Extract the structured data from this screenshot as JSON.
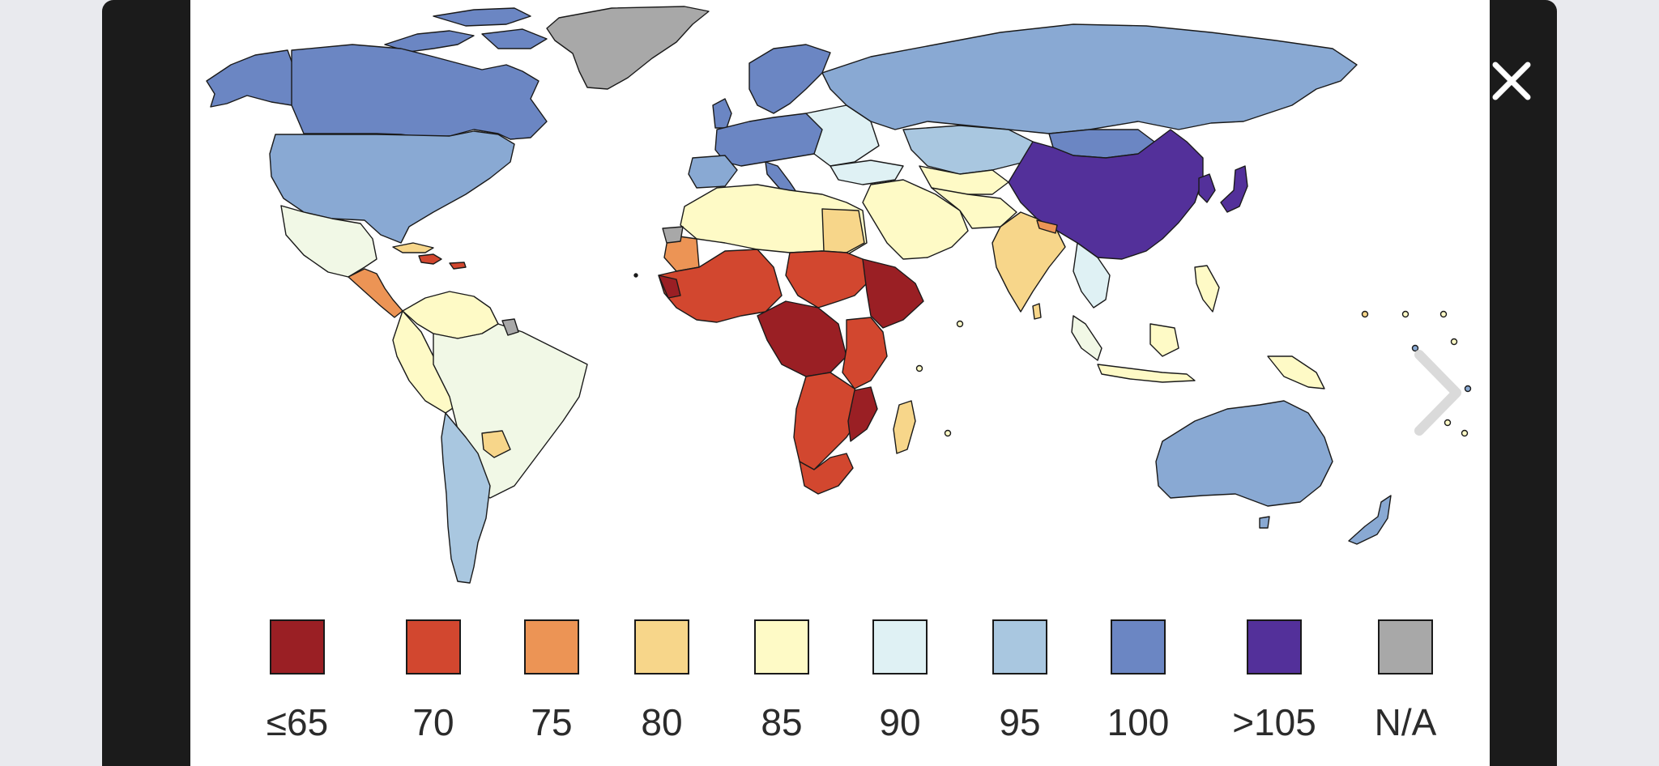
{
  "viewer": {
    "close_icon": "close-icon",
    "next_icon": "chevron-right-icon"
  },
  "map": {
    "type": "choropleth-world-map",
    "colors": {
      "le65": "#9a1f24",
      "v70": "#d2472f",
      "v75": "#ec9455",
      "v80": "#f7d68a",
      "v85": "#fefac6",
      "v88": "#f1f8e6",
      "v90": "#dff1f4",
      "v95": "#a9c7e0",
      "v97": "#89a9d3",
      "v100": "#6b86c3",
      "gt105": "#53309a",
      "na": "#a8a8a8"
    }
  },
  "legend": {
    "items": [
      {
        "label": "≤65",
        "color": "#9a1f24"
      },
      {
        "label": "70",
        "color": "#d2472f"
      },
      {
        "label": "75",
        "color": "#ec9455"
      },
      {
        "label": "80",
        "color": "#f7d68a"
      },
      {
        "label": "85",
        "color": "#fefac6"
      },
      {
        "label": "90",
        "color": "#dff1f4"
      },
      {
        "label": "95",
        "color": "#a9c7e0"
      },
      {
        "label": "100",
        "color": "#6b86c3"
      },
      {
        "label": ">105",
        "color": "#53309a"
      },
      {
        "label": "N/A",
        "color": "#a8a8a8"
      }
    ]
  }
}
